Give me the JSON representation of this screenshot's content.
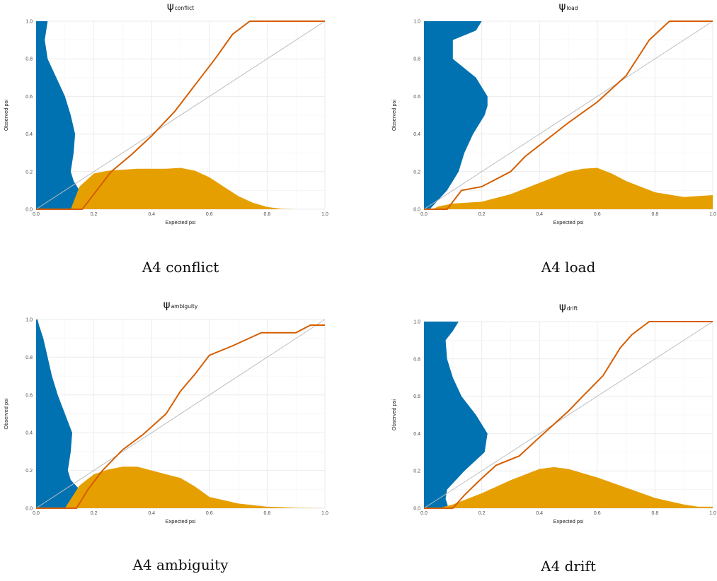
{
  "colors": {
    "blue": "#0072b2",
    "orange": "#e69f00",
    "line": "#d55e00",
    "grid": "#ebebeb",
    "diag": "#bdbdbd",
    "text": "#4d4d4d"
  },
  "chart_data": [
    {
      "type": "line",
      "title_symbol": "ψ",
      "title_sub": "conflict",
      "caption": "A4 conflict",
      "xlabel": "Expected psi",
      "ylabel": "Observed psi",
      "xlim": [
        0,
        1
      ],
      "ylim": [
        0,
        1
      ],
      "ticks": [
        "0.0",
        "0.2",
        "0.4",
        "0.6",
        "0.8",
        "1.0"
      ],
      "grid": true,
      "calibration": {
        "x": [
          0.0,
          0.16,
          0.2,
          0.26,
          0.33,
          0.4,
          0.48,
          0.55,
          0.62,
          0.68,
          0.74,
          0.78,
          1.0
        ],
        "y": [
          0.0,
          0.0,
          0.08,
          0.2,
          0.29,
          0.39,
          0.52,
          0.66,
          0.8,
          0.93,
          1.0,
          1.0,
          1.0
        ]
      },
      "expected_density": {
        "x": [
          0.12,
          0.15,
          0.2,
          0.25,
          0.3,
          0.35,
          0.4,
          0.45,
          0.5,
          0.55,
          0.6,
          0.65,
          0.7,
          0.75,
          0.8,
          0.85,
          0.9,
          1.0
        ],
        "y": [
          0.0,
          0.12,
          0.19,
          0.205,
          0.21,
          0.215,
          0.215,
          0.215,
          0.22,
          0.205,
          0.17,
          0.12,
          0.07,
          0.035,
          0.012,
          0.002,
          0.0,
          0.0
        ]
      },
      "observed_density": {
        "y": [
          0.0,
          0.05,
          0.1,
          0.15,
          0.2,
          0.3,
          0.4,
          0.5,
          0.6,
          0.7,
          0.8,
          0.9,
          0.95,
          1.0
        ],
        "x": [
          0.22,
          0.2,
          0.15,
          0.13,
          0.12,
          0.13,
          0.135,
          0.12,
          0.1,
          0.07,
          0.04,
          0.03,
          0.035,
          0.04
        ]
      }
    },
    {
      "type": "line",
      "title_symbol": "ψ",
      "title_sub": "load",
      "caption": "A4 load",
      "xlabel": "Expected psi",
      "ylabel": "Observed psi",
      "xlim": [
        0,
        1
      ],
      "ylim": [
        0,
        1
      ],
      "ticks": [
        "0.0",
        "0.2",
        "0.4",
        "0.6",
        "0.8",
        "1.0"
      ],
      "grid": true,
      "calibration": {
        "x": [
          0.0,
          0.08,
          0.13,
          0.2,
          0.3,
          0.35,
          0.4,
          0.5,
          0.6,
          0.7,
          0.78,
          0.85,
          1.0
        ],
        "y": [
          0.0,
          0.0,
          0.1,
          0.12,
          0.2,
          0.28,
          0.34,
          0.46,
          0.57,
          0.71,
          0.9,
          1.0,
          1.0
        ]
      },
      "expected_density": {
        "x": [
          0.03,
          0.05,
          0.1,
          0.2,
          0.3,
          0.4,
          0.5,
          0.55,
          0.6,
          0.65,
          0.7,
          0.8,
          0.9,
          1.0
        ],
        "y": [
          0.0,
          0.015,
          0.03,
          0.04,
          0.08,
          0.14,
          0.2,
          0.215,
          0.22,
          0.19,
          0.15,
          0.09,
          0.065,
          0.075
        ]
      },
      "observed_density": {
        "y": [
          0.0,
          0.05,
          0.1,
          0.2,
          0.3,
          0.4,
          0.5,
          0.55,
          0.6,
          0.7,
          0.8,
          0.9,
          0.95,
          1.0
        ],
        "x": [
          0.02,
          0.05,
          0.08,
          0.12,
          0.14,
          0.17,
          0.21,
          0.22,
          0.22,
          0.18,
          0.1,
          0.1,
          0.18,
          0.2
        ]
      }
    },
    {
      "type": "line",
      "title_symbol": "ψ",
      "title_sub": "ambiguity",
      "caption": "A4 ambiguity",
      "xlabel": "Expected psi",
      "ylabel": "Observed psi",
      "xlim": [
        0,
        1
      ],
      "ylim": [
        0,
        1
      ],
      "ticks": [
        "0.0",
        "0.2",
        "0.4",
        "0.6",
        "0.8",
        "1.0"
      ],
      "grid": true,
      "calibration": {
        "x": [
          0.0,
          0.14,
          0.18,
          0.23,
          0.3,
          0.37,
          0.45,
          0.5,
          0.55,
          0.6,
          0.68,
          0.78,
          0.9,
          0.95,
          1.0
        ],
        "y": [
          0.0,
          0.0,
          0.1,
          0.2,
          0.31,
          0.39,
          0.5,
          0.62,
          0.71,
          0.81,
          0.86,
          0.93,
          0.93,
          0.97,
          0.97
        ]
      },
      "expected_density": {
        "x": [
          0.1,
          0.15,
          0.2,
          0.25,
          0.3,
          0.35,
          0.4,
          0.45,
          0.5,
          0.55,
          0.6,
          0.7,
          0.8,
          0.9,
          1.0
        ],
        "y": [
          0.0,
          0.12,
          0.18,
          0.205,
          0.22,
          0.22,
          0.2,
          0.18,
          0.16,
          0.115,
          0.06,
          0.025,
          0.008,
          0.002,
          0.0
        ]
      },
      "observed_density": {
        "y": [
          0.0,
          0.05,
          0.1,
          0.15,
          0.2,
          0.3,
          0.4,
          0.5,
          0.6,
          0.7,
          0.8,
          0.9,
          0.97,
          1.0
        ],
        "x": [
          0.22,
          0.2,
          0.15,
          0.12,
          0.11,
          0.12,
          0.125,
          0.1,
          0.075,
          0.055,
          0.04,
          0.025,
          0.01,
          0.005
        ]
      }
    },
    {
      "type": "line",
      "title_symbol": "ψ",
      "title_sub": "drift",
      "caption": "A4 drift",
      "xlabel": "Expected psi",
      "ylabel": "Observed psi",
      "xlim": [
        0,
        1
      ],
      "ylim": [
        0,
        1
      ],
      "ticks": [
        "0.0",
        "0.2",
        "0.4",
        "0.6",
        "0.8",
        "1.0"
      ],
      "grid": true,
      "calibration": {
        "x": [
          0.0,
          0.1,
          0.14,
          0.2,
          0.25,
          0.33,
          0.4,
          0.5,
          0.55,
          0.62,
          0.68,
          0.72,
          0.78,
          1.0
        ],
        "y": [
          0.0,
          0.0,
          0.07,
          0.16,
          0.23,
          0.28,
          0.38,
          0.52,
          0.6,
          0.71,
          0.86,
          0.93,
          1.0,
          1.0
        ]
      },
      "expected_density": {
        "x": [
          0.05,
          0.1,
          0.2,
          0.3,
          0.4,
          0.45,
          0.5,
          0.6,
          0.7,
          0.8,
          0.9,
          0.95,
          1.0
        ],
        "y": [
          0.0,
          0.02,
          0.08,
          0.15,
          0.21,
          0.22,
          0.21,
          0.165,
          0.11,
          0.055,
          0.02,
          0.008,
          0.008
        ]
      },
      "observed_density": {
        "y": [
          0.0,
          0.05,
          0.1,
          0.2,
          0.3,
          0.4,
          0.5,
          0.6,
          0.7,
          0.8,
          0.9,
          0.95,
          1.0
        ],
        "x": [
          0.085,
          0.075,
          0.08,
          0.14,
          0.21,
          0.22,
          0.18,
          0.13,
          0.1,
          0.08,
          0.075,
          0.1,
          0.12
        ]
      }
    }
  ]
}
